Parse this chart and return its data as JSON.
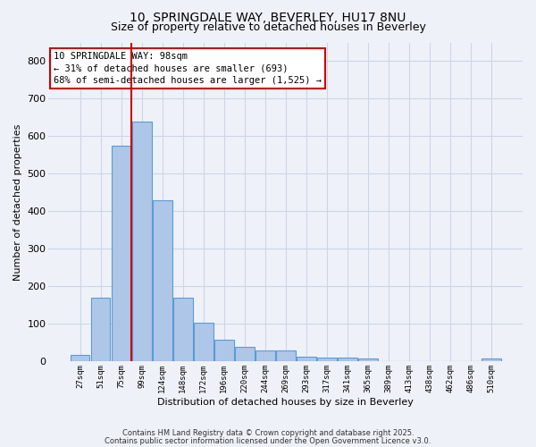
{
  "title1": "10, SPRINGDALE WAY, BEVERLEY, HU17 8NU",
  "title2": "Size of property relative to detached houses in Beverley",
  "xlabel": "Distribution of detached houses by size in Beverley",
  "ylabel": "Number of detached properties",
  "categories": [
    "27sqm",
    "51sqm",
    "75sqm",
    "99sqm",
    "124sqm",
    "148sqm",
    "172sqm",
    "196sqm",
    "220sqm",
    "244sqm",
    "269sqm",
    "293sqm",
    "317sqm",
    "341sqm",
    "365sqm",
    "389sqm",
    "413sqm",
    "438sqm",
    "462sqm",
    "486sqm",
    "510sqm"
  ],
  "values": [
    18,
    170,
    575,
    640,
    430,
    170,
    103,
    57,
    38,
    30,
    30,
    13,
    10,
    10,
    8,
    0,
    0,
    0,
    0,
    0,
    7
  ],
  "bar_color": "#aec6e8",
  "bar_edgecolor": "#5b9bd5",
  "bar_linewidth": 0.8,
  "redline_index": 2.5,
  "redline_color": "#cc0000",
  "redline_linewidth": 1.5,
  "grid_color": "#ccd5e8",
  "background_color": "#eef2f8",
  "ylim": [
    0,
    850
  ],
  "yticks": [
    0,
    100,
    200,
    300,
    400,
    500,
    600,
    700,
    800
  ],
  "annotation_text": "10 SPRINGDALE WAY: 98sqm\n← 31% of detached houses are smaller (693)\n68% of semi-detached houses are larger (1,525) →",
  "annotation_boxcolor": "white",
  "annotation_boxedgecolor": "#cc0000",
  "footer1": "Contains HM Land Registry data © Crown copyright and database right 2025.",
  "footer2": "Contains public sector information licensed under the Open Government Licence v3.0."
}
